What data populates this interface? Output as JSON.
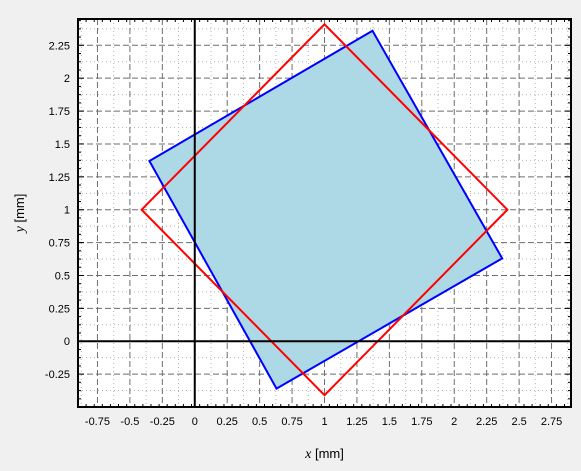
{
  "chart_data": {
    "type": "polygon-plot",
    "xlabel": {
      "var": "x",
      "unit": " [mm]"
    },
    "ylabel": {
      "var": "y",
      "unit": " [mm]"
    },
    "xlim": [
      -0.9,
      2.9
    ],
    "ylim": [
      -0.5,
      2.45
    ],
    "grid": true,
    "x_ticks": [
      -0.75,
      -0.5,
      -0.25,
      0,
      0.25,
      0.5,
      0.75,
      1,
      1.25,
      1.5,
      1.75,
      2,
      2.25,
      2.5,
      2.75
    ],
    "y_ticks": [
      -0.25,
      0,
      0.25,
      0.5,
      0.75,
      1,
      1.25,
      1.5,
      1.75,
      2,
      2.25
    ],
    "x_tick_labels": [
      "-0.75",
      "-0.5",
      "-0.25",
      "0",
      "0.25",
      "0.5",
      "0.75",
      "1",
      "1.25",
      "1.5",
      "1.75",
      "2",
      "2.25",
      "2.5",
      "2.75"
    ],
    "y_tick_labels": [
      "-0.25",
      "0",
      "0.25",
      "0.5",
      "0.75",
      "1",
      "1.25",
      "1.5",
      "1.75",
      "2",
      "2.25"
    ],
    "shapes": [
      {
        "kind": "rotated-square",
        "fill": "#add8e6",
        "stroke": "#0000ff",
        "points": [
          [
            1.37,
            2.36
          ],
          [
            2.37,
            0.63
          ],
          [
            0.63,
            -0.36
          ],
          [
            -0.35,
            1.37
          ]
        ]
      },
      {
        "kind": "diamond",
        "fill": "none",
        "stroke": "#ff0000",
        "points": [
          [
            1,
            2.41
          ],
          [
            2.41,
            1
          ],
          [
            1,
            -0.41
          ],
          [
            -0.41,
            1
          ]
        ]
      }
    ]
  }
}
